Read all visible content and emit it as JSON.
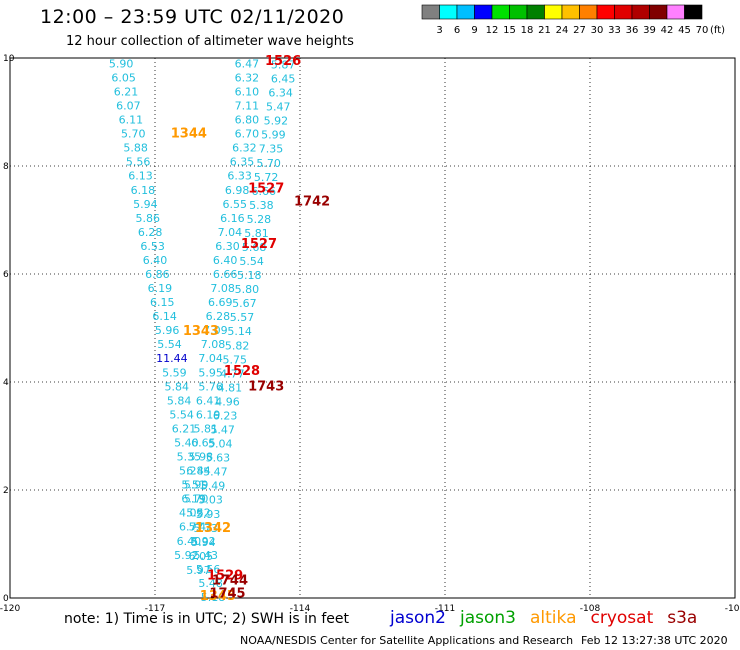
{
  "header": {
    "title": "12:00 – 23:59 UTC 02/11/2020",
    "subtitle": "12 hour collection of altimeter wave heights"
  },
  "colorbar": {
    "labels": [
      "3",
      "6",
      "9",
      "12",
      "15",
      "18",
      "21",
      "24",
      "27",
      "30",
      "33",
      "36",
      "39",
      "42",
      "45",
      "70"
    ],
    "colors": [
      "#808080",
      "#00ffff",
      "#00bfff",
      "#0000ff",
      "#00e000",
      "#00c000",
      "#008000",
      "#ffff00",
      "#ffc000",
      "#ff8000",
      "#ff0000",
      "#e00000",
      "#b00000",
      "#800000",
      "#ff80ff",
      "#000000"
    ],
    "unit": "(ft)"
  },
  "footer": {
    "note": "note:  1) Time is in UTC;  2) SWH is in feet",
    "credit": "NOAA/NESDIS Center for Satellite Applications and Research",
    "stamp": "Feb 12 13:27:38 UTC 2020"
  },
  "legend": [
    {
      "label": "jason2",
      "color": "#0000d0"
    },
    {
      "label": "jason3",
      "color": "#00a000"
    },
    {
      "label": "altika",
      "color": "#ff9900"
    },
    {
      "label": "cryosat",
      "color": "#e00000"
    },
    {
      "label": "s3a",
      "color": "#990000"
    }
  ],
  "chart_data": {
    "type": "scatter",
    "xlim": [
      -120,
      -105
    ],
    "ylim": [
      0,
      10
    ],
    "x_ticks": [
      "-120",
      "-117",
      "-114",
      "-111",
      "-108",
      "-105"
    ],
    "y_ticks": [
      "0",
      "2",
      "4",
      "6",
      "8",
      "10"
    ],
    "grid": true,
    "value_color": "#22bfdd",
    "value_labels": [
      {
        "x": -117.7,
        "y": 9.9,
        "text": "5.90"
      },
      {
        "x": -117.65,
        "y": 9.64,
        "text": "6.05"
      },
      {
        "x": -117.6,
        "y": 9.38,
        "text": "6.21"
      },
      {
        "x": -117.55,
        "y": 9.12,
        "text": "6.07"
      },
      {
        "x": -117.5,
        "y": 8.86,
        "text": "6.11"
      },
      {
        "x": -117.45,
        "y": 8.6,
        "text": "5.70"
      },
      {
        "x": -117.4,
        "y": 8.34,
        "text": "5.88"
      },
      {
        "x": -117.35,
        "y": 8.08,
        "text": "5.56"
      },
      {
        "x": -117.3,
        "y": 7.82,
        "text": "6.13"
      },
      {
        "x": -117.25,
        "y": 7.56,
        "text": "6.18"
      },
      {
        "x": -117.2,
        "y": 7.3,
        "text": "5.94"
      },
      {
        "x": -117.15,
        "y": 7.04,
        "text": "5.86"
      },
      {
        "x": -117.1,
        "y": 6.78,
        "text": "6.28"
      },
      {
        "x": -117.05,
        "y": 6.52,
        "text": "6.53"
      },
      {
        "x": -117.0,
        "y": 6.26,
        "text": "6.40"
      },
      {
        "x": -116.95,
        "y": 6.0,
        "text": "6.86"
      },
      {
        "x": -116.9,
        "y": 5.74,
        "text": "6.19"
      },
      {
        "x": -116.85,
        "y": 5.48,
        "text": "6.15"
      },
      {
        "x": -116.8,
        "y": 5.22,
        "text": "6.14"
      },
      {
        "x": -116.75,
        "y": 4.96,
        "text": "5.96"
      },
      {
        "x": -116.7,
        "y": 4.7,
        "text": "5.54"
      },
      {
        "x": -116.65,
        "y": 4.44,
        "text": "11.44",
        "color": "#0000cc"
      },
      {
        "x": -116.6,
        "y": 4.18,
        "text": "5.59"
      },
      {
        "x": -116.55,
        "y": 3.92,
        "text": "5.84"
      },
      {
        "x": -116.5,
        "y": 3.66,
        "text": "5.84"
      },
      {
        "x": -116.45,
        "y": 3.4,
        "text": "5.54"
      },
      {
        "x": -116.4,
        "y": 3.14,
        "text": "6.21"
      },
      {
        "x": -116.35,
        "y": 2.88,
        "text": "5.40"
      },
      {
        "x": -116.3,
        "y": 2.62,
        "text": "5.35"
      },
      {
        "x": -116.25,
        "y": 2.36,
        "text": "5.28"
      },
      {
        "x": -116.2,
        "y": 2.1,
        "text": "5.51"
      },
      {
        "x": -116.15,
        "y": 1.84,
        "text": "5.70"
      },
      {
        "x": -116.1,
        "y": 1.58,
        "text": "5.52"
      },
      {
        "x": -116.05,
        "y": 1.32,
        "text": "5.41"
      },
      {
        "x": -116.0,
        "y": 1.06,
        "text": "5.92"
      },
      {
        "x": -115.95,
        "y": 0.8,
        "text": "5.43"
      },
      {
        "x": -115.9,
        "y": 0.54,
        "text": "5.56"
      },
      {
        "x": -115.85,
        "y": 0.28,
        "text": "5.48"
      },
      {
        "x": -115.8,
        "y": 0.02,
        "text": "5.18"
      },
      {
        "x": -115.1,
        "y": 9.9,
        "text": "6.47"
      },
      {
        "x": -115.1,
        "y": 9.64,
        "text": "6.32"
      },
      {
        "x": -115.1,
        "y": 9.38,
        "text": "6.10"
      },
      {
        "x": -115.1,
        "y": 9.12,
        "text": "7.11"
      },
      {
        "x": -115.1,
        "y": 8.86,
        "text": "6.80"
      },
      {
        "x": -115.1,
        "y": 8.6,
        "text": "6.70"
      },
      {
        "x": -115.15,
        "y": 8.34,
        "text": "6.32"
      },
      {
        "x": -115.2,
        "y": 8.08,
        "text": "6.35"
      },
      {
        "x": -115.25,
        "y": 7.82,
        "text": "6.33"
      },
      {
        "x": -115.3,
        "y": 7.56,
        "text": "6.98"
      },
      {
        "x": -115.35,
        "y": 7.3,
        "text": "6.55"
      },
      {
        "x": -115.4,
        "y": 7.04,
        "text": "6.16"
      },
      {
        "x": -115.45,
        "y": 6.78,
        "text": "7.04"
      },
      {
        "x": -115.5,
        "y": 6.52,
        "text": "6.30"
      },
      {
        "x": -115.55,
        "y": 6.26,
        "text": "6.40"
      },
      {
        "x": -115.55,
        "y": 6.0,
        "text": "6.66"
      },
      {
        "x": -115.6,
        "y": 5.74,
        "text": "7.08"
      },
      {
        "x": -115.65,
        "y": 5.48,
        "text": "6.69"
      },
      {
        "x": -115.7,
        "y": 5.22,
        "text": "6.28"
      },
      {
        "x": -115.75,
        "y": 4.96,
        "text": "7.09"
      },
      {
        "x": -115.8,
        "y": 4.7,
        "text": "7.08"
      },
      {
        "x": -115.85,
        "y": 4.44,
        "text": "7.04"
      },
      {
        "x": -115.85,
        "y": 4.18,
        "text": "5.95"
      },
      {
        "x": -115.85,
        "y": 3.92,
        "text": "5.76"
      },
      {
        "x": -115.9,
        "y": 3.66,
        "text": "6.41"
      },
      {
        "x": -115.9,
        "y": 3.4,
        "text": "6.19"
      },
      {
        "x": -115.95,
        "y": 3.14,
        "text": "5.81"
      },
      {
        "x": -116.0,
        "y": 2.88,
        "text": "6.65"
      },
      {
        "x": -116.05,
        "y": 2.62,
        "text": "5.98"
      },
      {
        "x": -116.1,
        "y": 2.36,
        "text": "6.44"
      },
      {
        "x": -116.15,
        "y": 2.1,
        "text": "5.99"
      },
      {
        "x": -116.2,
        "y": 1.84,
        "text": "6.19"
      },
      {
        "x": -116.25,
        "y": 1.58,
        "text": "4.02"
      },
      {
        "x": -116.25,
        "y": 1.32,
        "text": "6.77"
      },
      {
        "x": -116.3,
        "y": 1.06,
        "text": "6.40"
      },
      {
        "x": -116.35,
        "y": 0.8,
        "text": "5.92"
      },
      {
        "x": -114.35,
        "y": 9.88,
        "text": "5.87"
      },
      {
        "x": -114.35,
        "y": 9.62,
        "text": "6.45"
      },
      {
        "x": -114.4,
        "y": 9.36,
        "text": "6.34"
      },
      {
        "x": -114.45,
        "y": 9.1,
        "text": "5.47"
      },
      {
        "x": -114.5,
        "y": 8.84,
        "text": "5.92"
      },
      {
        "x": -114.55,
        "y": 8.58,
        "text": "5.99"
      },
      {
        "x": -114.6,
        "y": 8.32,
        "text": "7.35"
      },
      {
        "x": -114.65,
        "y": 8.06,
        "text": "5.70"
      },
      {
        "x": -114.7,
        "y": 7.8,
        "text": "5.72"
      },
      {
        "x": -114.75,
        "y": 7.54,
        "text": "6.66"
      },
      {
        "x": -114.8,
        "y": 7.28,
        "text": "5.38"
      },
      {
        "x": -114.85,
        "y": 7.02,
        "text": "5.28"
      },
      {
        "x": -114.9,
        "y": 6.76,
        "text": "5.81"
      },
      {
        "x": -114.95,
        "y": 6.5,
        "text": "5.68"
      },
      {
        "x": -115.0,
        "y": 6.24,
        "text": "5.54"
      },
      {
        "x": -115.05,
        "y": 5.98,
        "text": "5.18"
      },
      {
        "x": -115.1,
        "y": 5.72,
        "text": "5.80"
      },
      {
        "x": -115.15,
        "y": 5.46,
        "text": "5.67"
      },
      {
        "x": -115.2,
        "y": 5.2,
        "text": "5.57"
      },
      {
        "x": -115.25,
        "y": 4.94,
        "text": "5.14"
      },
      {
        "x": -115.3,
        "y": 4.68,
        "text": "5.82"
      },
      {
        "x": -115.35,
        "y": 4.42,
        "text": "5.75"
      },
      {
        "x": -115.4,
        "y": 4.16,
        "text": "4.77"
      },
      {
        "x": -115.45,
        "y": 3.9,
        "text": "4.81"
      },
      {
        "x": -115.5,
        "y": 3.64,
        "text": "4.96"
      },
      {
        "x": -115.55,
        "y": 3.38,
        "text": "6.23"
      },
      {
        "x": -115.6,
        "y": 3.12,
        "text": "5.47"
      },
      {
        "x": -115.65,
        "y": 2.86,
        "text": "5.04"
      },
      {
        "x": -115.7,
        "y": 2.6,
        "text": "5.63"
      },
      {
        "x": -115.75,
        "y": 2.34,
        "text": "5.47"
      },
      {
        "x": -115.8,
        "y": 2.08,
        "text": "5.49"
      },
      {
        "x": -115.85,
        "y": 1.82,
        "text": "5.03"
      },
      {
        "x": -115.9,
        "y": 1.56,
        "text": "5.93"
      },
      {
        "x": -115.95,
        "y": 1.3,
        "text": "5.73"
      },
      {
        "x": -116.0,
        "y": 1.04,
        "text": "5.94"
      },
      {
        "x": -116.05,
        "y": 0.78,
        "text": "6.05"
      },
      {
        "x": -116.1,
        "y": 0.52,
        "text": "5.97"
      }
    ],
    "pass_labels": [
      {
        "x": -114.35,
        "y": 9.94,
        "text": "1526",
        "sat": "cryosat",
        "color": "#e00000"
      },
      {
        "x": -116.3,
        "y": 8.6,
        "text": "1344",
        "sat": "altika",
        "color": "#ff9900"
      },
      {
        "x": -114.7,
        "y": 7.58,
        "text": "1527",
        "sat": "cryosat",
        "color": "#e00000"
      },
      {
        "x": -113.75,
        "y": 7.34,
        "text": "1742",
        "sat": "s3a",
        "color": "#990000"
      },
      {
        "x": -114.85,
        "y": 6.56,
        "text": "1527",
        "sat": "cryosat",
        "color": "#e00000"
      },
      {
        "x": -116.05,
        "y": 4.94,
        "text": "1343",
        "sat": "altika",
        "color": "#ff9900"
      },
      {
        "x": -115.2,
        "y": 4.2,
        "text": "1528",
        "sat": "cryosat",
        "color": "#e00000"
      },
      {
        "x": -114.7,
        "y": 3.92,
        "text": "1743",
        "sat": "s3a",
        "color": "#990000"
      },
      {
        "x": -115.8,
        "y": 1.3,
        "text": "1342",
        "sat": "altika",
        "color": "#ff9900"
      },
      {
        "x": -115.55,
        "y": 0.42,
        "text": "1529",
        "sat": "cryosat",
        "color": "#e00000"
      },
      {
        "x": -115.45,
        "y": 0.32,
        "text": "1744",
        "sat": "s3a",
        "color": "#990000"
      },
      {
        "x": -115.7,
        "y": 0.04,
        "text": "1345",
        "sat": "altika",
        "color": "#ff9900"
      },
      {
        "x": -115.5,
        "y": 0.08,
        "text": "1745",
        "sat": "s3a",
        "color": "#990000"
      }
    ]
  }
}
